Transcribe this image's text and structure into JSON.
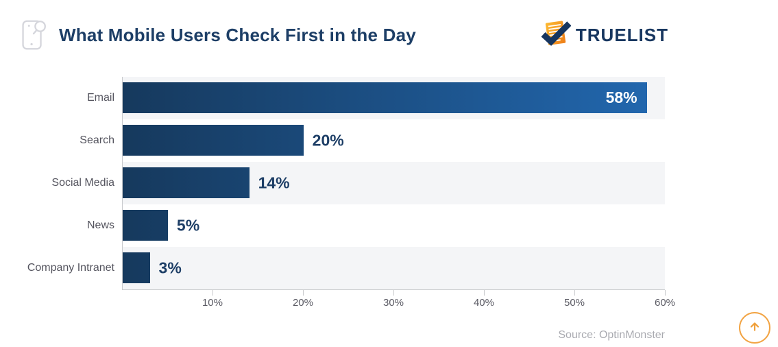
{
  "header": {
    "title": "What Mobile Users Check First in the Day",
    "title_icon": "phone-search-icon",
    "logo_text": "TRUELIST"
  },
  "chart_data": {
    "type": "bar",
    "orientation": "horizontal",
    "title": "What Mobile Users Check First in the Day",
    "categories": [
      "Email",
      "Search",
      "Social Media",
      "News",
      "Company Intranet"
    ],
    "values": [
      58,
      20,
      14,
      5,
      3
    ],
    "items": [
      {
        "label": "Email",
        "value": 58,
        "value_label": "58%",
        "value_label_inside": true,
        "band": true
      },
      {
        "label": "Search",
        "value": 20,
        "value_label": "20%",
        "value_label_inside": false,
        "band": false
      },
      {
        "label": "Social Media",
        "value": 14,
        "value_label": "14%",
        "value_label_inside": false,
        "band": true
      },
      {
        "label": "News",
        "value": 5,
        "value_label": "5%",
        "value_label_inside": false,
        "band": false
      },
      {
        "label": "Company Intranet",
        "value": 3,
        "value_label": "3%",
        "value_label_inside": false,
        "band": true
      }
    ],
    "xlim": [
      0,
      60
    ],
    "x_ticks": [
      {
        "value": 10,
        "label": "10%"
      },
      {
        "value": 20,
        "label": "20%"
      },
      {
        "value": 30,
        "label": "30%"
      },
      {
        "value": 40,
        "label": "40%"
      },
      {
        "value": 50,
        "label": "50%"
      },
      {
        "value": 60,
        "label": "60%"
      }
    ],
    "grid": false,
    "legend": false,
    "source": "Source: OptinMonster",
    "colors": {
      "bar_gradient_start": "#16395d",
      "bar_gradient_end": "#2268b0",
      "row_band": "#f4f5f7",
      "value_label": "#1d3e66",
      "value_label_inside": "#ffffff",
      "accent_orange": "#f2a444",
      "title_navy": "#1d3e66"
    }
  }
}
